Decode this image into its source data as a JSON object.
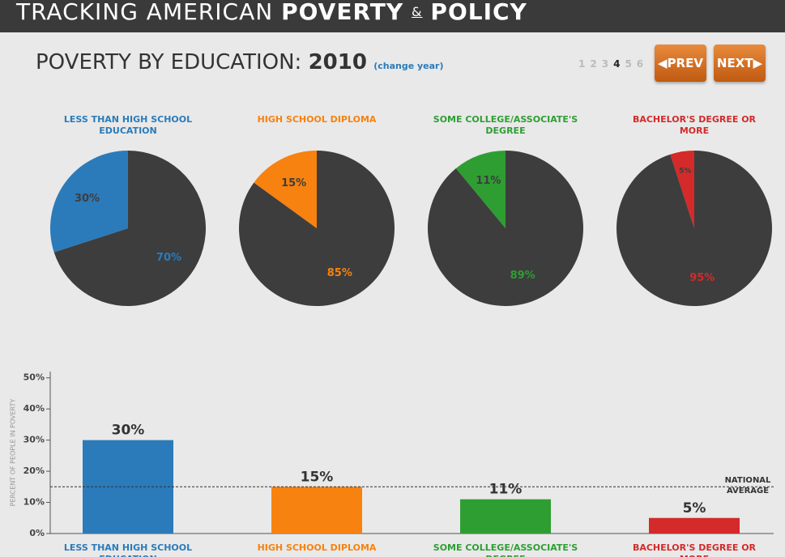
{
  "header": {
    "title_light": "TRACKING AMERICAN",
    "title_bold_1": "POVERTY",
    "ampersand": "&",
    "title_bold_2": "POLICY"
  },
  "section": {
    "title": "POVERTY BY EDUCATION:",
    "year": "2010",
    "change_link": "(change year)"
  },
  "pager": {
    "pages": [
      "1",
      "2",
      "3",
      "4",
      "5",
      "6"
    ],
    "current": 3,
    "prev": "PREV",
    "next": "NEXT"
  },
  "chart_data": [
    {
      "type": "pie",
      "title": "LESS THAN HIGH SCHOOL EDUCATION",
      "title_color": "#2b7bba",
      "values": [
        30,
        70
      ],
      "value_labels": [
        "30%",
        "70%"
      ],
      "colors": [
        "#2b7bba",
        "#3d3d3d"
      ],
      "label_colors": [
        "#3d3d3d",
        "#2b7bba"
      ]
    },
    {
      "type": "pie",
      "title": "HIGH SCHOOL DIPLOMA",
      "title_color": "#f7820f",
      "values": [
        15,
        85
      ],
      "value_labels": [
        "15%",
        "85%"
      ],
      "colors": [
        "#f7820f",
        "#3d3d3d"
      ],
      "label_colors": [
        "#3d3d3d",
        "#f7820f"
      ]
    },
    {
      "type": "pie",
      "title": "SOME COLLEGE/ASSOCIATE'S DEGREE",
      "title_color": "#2e9e33",
      "values": [
        11,
        89
      ],
      "value_labels": [
        "11%",
        "89%"
      ],
      "colors": [
        "#2e9e33",
        "#3d3d3d"
      ],
      "label_colors": [
        "#3d3d3d",
        "#2e9e33"
      ]
    },
    {
      "type": "pie",
      "title": "BACHELOR'S DEGREE OR MORE",
      "title_color": "#d42a2a",
      "values": [
        5,
        95
      ],
      "value_labels": [
        "5%",
        "95%"
      ],
      "colors": [
        "#d42a2a",
        "#3d3d3d"
      ],
      "label_colors": [
        "#3d3d3d",
        "#d42a2a"
      ]
    },
    {
      "type": "bar",
      "y_label": "PERCENT OF PEOPLE IN POVERTY",
      "categories": [
        "LESS THAN HIGH SCHOOL EDUCATION",
        "HIGH SCHOOL DIPLOMA",
        "SOME COLLEGE/ASSOCIATE'S DEGREE",
        "BACHELOR'S DEGREE OR MORE"
      ],
      "values": [
        30,
        15,
        11,
        5
      ],
      "value_labels": [
        "30%",
        "15%",
        "11%",
        "5%"
      ],
      "colors": [
        "#2b7bba",
        "#f7820f",
        "#2e9e33",
        "#d42a2a"
      ],
      "ylim": [
        0,
        52
      ],
      "yticks": [
        {
          "value": 0,
          "label": "0%"
        },
        {
          "value": 10,
          "label": "10%"
        },
        {
          "value": 20,
          "label": "20%"
        },
        {
          "value": 30,
          "label": "30%"
        },
        {
          "value": 40,
          "label": "40%"
        },
        {
          "value": 50,
          "label": "50%"
        }
      ],
      "reference_line": {
        "value": 15,
        "label": "NATIONAL AVERAGE"
      }
    }
  ]
}
